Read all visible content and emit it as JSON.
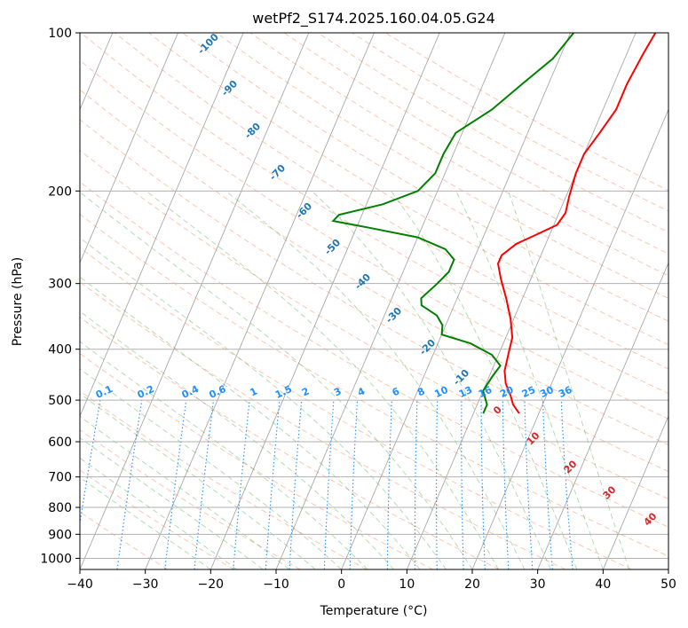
{
  "chart_data": {
    "type": "line",
    "title": "wetPf2_S174.2025.160.04.05.G24",
    "xlabel": "Temperature (°C)",
    "ylabel": "Pressure (hPa)",
    "xlim": [
      -40,
      50
    ],
    "ylim": [
      1050,
      100
    ],
    "y_scale": "log",
    "grid": true,
    "x_ticks": [
      -40,
      -30,
      -20,
      -10,
      0,
      10,
      20,
      30,
      40,
      50
    ],
    "y_ticks": [
      100,
      200,
      300,
      400,
      500,
      600,
      700,
      800,
      900,
      1000
    ],
    "series": [
      {
        "color": "#ff0000",
        "points": [
          [
            17.0,
            530
          ],
          [
            15.5,
            510
          ],
          [
            14.5,
            490
          ],
          [
            13.0,
            465
          ],
          [
            12.0,
            440
          ],
          [
            11.5,
            410
          ],
          [
            11.0,
            380
          ],
          [
            9.5,
            350
          ],
          [
            7.5,
            320
          ],
          [
            5.5,
            295
          ],
          [
            4.0,
            275
          ],
          [
            4.0,
            265
          ],
          [
            5.5,
            252
          ],
          [
            8.0,
            242
          ],
          [
            10.5,
            232
          ],
          [
            11.0,
            220
          ],
          [
            10.5,
            205
          ],
          [
            10.0,
            185
          ],
          [
            10.0,
            170
          ],
          [
            11.0,
            155
          ],
          [
            12.0,
            140
          ],
          [
            12.0,
            125
          ],
          [
            12.5,
            110
          ],
          [
            13.0,
            100
          ]
        ]
      },
      {
        "color": "#008000",
        "points": [
          [
            11.5,
            530
          ],
          [
            11.5,
            510
          ],
          [
            10.0,
            480
          ],
          [
            10.5,
            450
          ],
          [
            11.0,
            430
          ],
          [
            9.0,
            410
          ],
          [
            5.0,
            390
          ],
          [
            0.0,
            375
          ],
          [
            -0.5,
            360
          ],
          [
            -2.0,
            345
          ],
          [
            -5.0,
            330
          ],
          [
            -5.5,
            320
          ],
          [
            -4.0,
            300
          ],
          [
            -3.0,
            285
          ],
          [
            -3.0,
            270
          ],
          [
            -5.0,
            258
          ],
          [
            -10.0,
            245
          ],
          [
            -18.0,
            235
          ],
          [
            -24.0,
            228
          ],
          [
            -23.5,
            222
          ],
          [
            -17.5,
            212
          ],
          [
            -13.0,
            200
          ],
          [
            -11.5,
            185
          ],
          [
            -11.5,
            170
          ],
          [
            -11.0,
            155
          ],
          [
            -7.0,
            140
          ],
          [
            -4.0,
            125
          ],
          [
            -1.0,
            112
          ],
          [
            0.5,
            100
          ]
        ]
      }
    ],
    "dry_adiabat_labels": [
      "-100",
      "-90",
      "-80",
      "-70",
      "-60",
      "-50",
      "-40",
      "-30",
      "-20",
      "-10"
    ],
    "moist_adiabat_labels": [
      "0",
      "10",
      "20",
      "30",
      "40"
    ],
    "mixing_ratio_labels": [
      "0.1",
      "0.2",
      "0.4",
      "0.6",
      "1",
      "1.5",
      "2",
      "3",
      "4",
      "6",
      "8",
      "10",
      "13",
      "16",
      "20",
      "25",
      "30",
      "36"
    ]
  },
  "colors": {
    "temperature": "#ff0000",
    "dewpoint": "#008000",
    "isotherm": "#a0a0a0",
    "dry_adiabat": "#ff7f50",
    "moist_adiabat": "#2ca02c",
    "mixing_ratio": "#1e90ff"
  }
}
